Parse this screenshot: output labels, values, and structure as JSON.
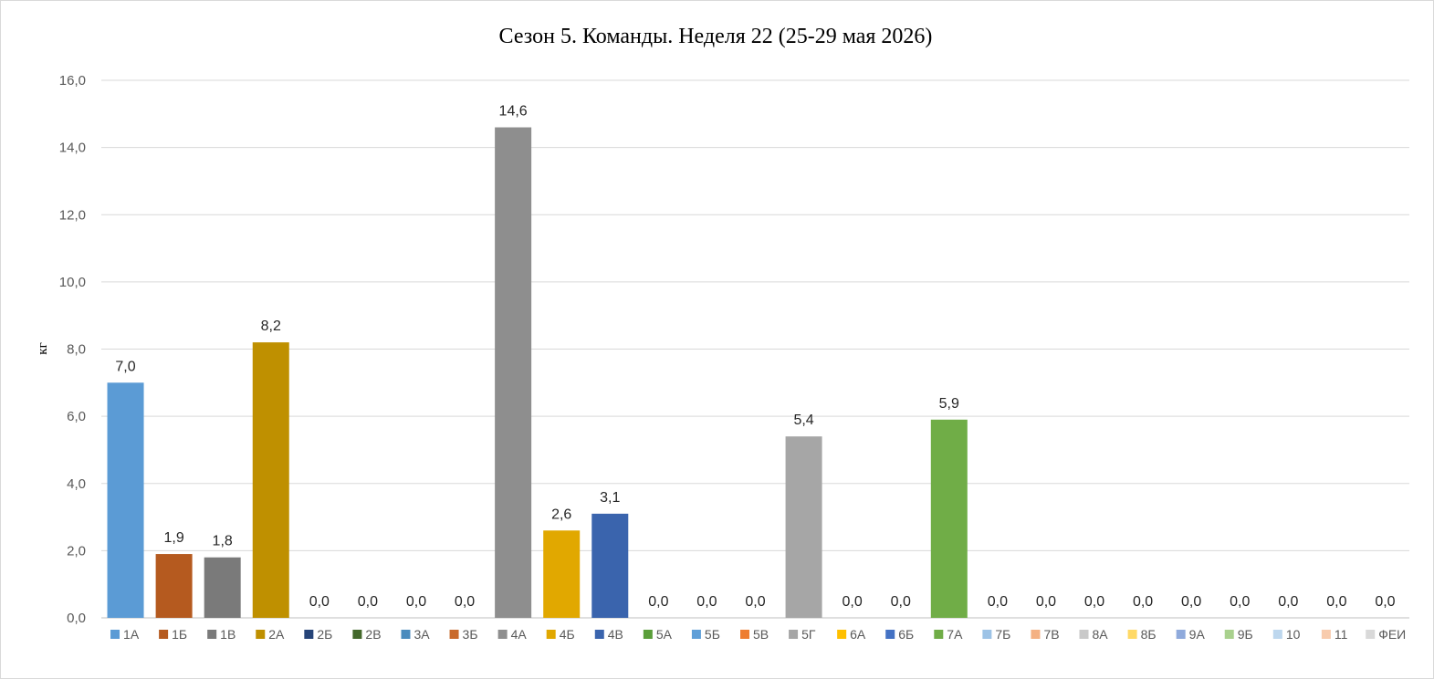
{
  "chart_data": {
    "type": "bar",
    "title": "Сезон 5. Команды. Неделя 22 (25-29 мая 2026)",
    "xlabel": "",
    "ylabel": "кг",
    "ylim": [
      0,
      16
    ],
    "yticks": [
      "0,0",
      "2,0",
      "4,0",
      "6,0",
      "8,0",
      "10,0",
      "12,0",
      "14,0",
      "16,0"
    ],
    "grid": true,
    "legend_position": "bottom",
    "categories": [
      "1А",
      "1Б",
      "1В",
      "2А",
      "2Б",
      "2В",
      "3А",
      "3Б",
      "4А",
      "4Б",
      "4В",
      "5А",
      "5Б",
      "5В",
      "5Г",
      "6А",
      "6Б",
      "7А",
      "7Б",
      "7В",
      "8А",
      "8Б",
      "9А",
      "9Б",
      "10",
      "11",
      "ФЕИ"
    ],
    "values": [
      7.0,
      1.9,
      1.8,
      8.2,
      0,
      0,
      0,
      0,
      14.6,
      2.6,
      3.1,
      0,
      0,
      0,
      5.4,
      0,
      0,
      5.9,
      0,
      0,
      0,
      0,
      0,
      0,
      0,
      0,
      0
    ],
    "data_labels": [
      "7,0",
      "1,9",
      "1,8",
      "8,2",
      "0,0",
      "0,0",
      "0,0",
      "0,0",
      "14,6",
      "2,6",
      "3,1",
      "0,0",
      "0,0",
      "0,0",
      "5,4",
      "0,0",
      "0,0",
      "5,9",
      "0,0",
      "0,0",
      "0,0",
      "0,0",
      "0,0",
      "0,0",
      "0,0",
      "0,0",
      "0,0"
    ],
    "colors": [
      "#5b9bd5",
      "#b55a1f",
      "#7a7a7a",
      "#bf9000",
      "#264478",
      "#43682b",
      "#4a8bbd",
      "#c96a2b",
      "#8e8e8e",
      "#e1a800",
      "#3a64ad",
      "#5a9e3a",
      "#5f9fd8",
      "#ee7d31",
      "#a6a6a6",
      "#ffc000",
      "#4472c4",
      "#70ad47",
      "#9dc3e6",
      "#f4b183",
      "#c9c9c9",
      "#ffd966",
      "#8faadc",
      "#a9d18e",
      "#bdd7ee",
      "#f8cbad",
      "#d9d9d9"
    ]
  }
}
